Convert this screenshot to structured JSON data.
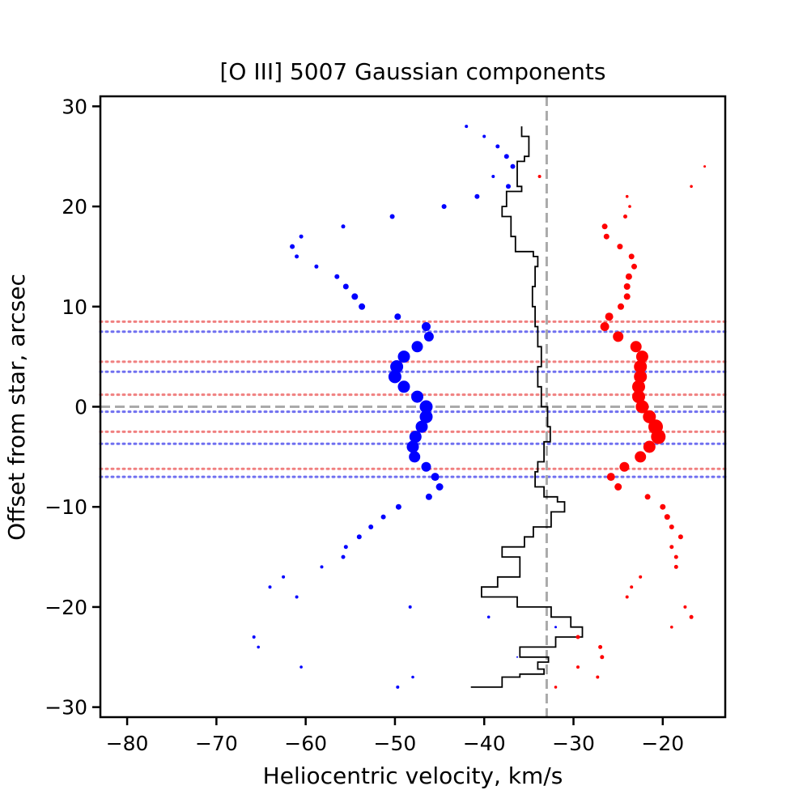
{
  "chart_data": {
    "type": "scatter",
    "title": "[O III] 5007 Gaussian components",
    "xlabel": "Heliocentric velocity, km/s",
    "ylabel": "Offset from star, arcsec",
    "xlim": [
      -83,
      -13
    ],
    "ylim": [
      -31,
      31
    ],
    "xticks": [
      -80,
      -70,
      -60,
      -50,
      -40,
      -30,
      -20
    ],
    "xtick_labels": [
      "−80",
      "−70",
      "−60",
      "−50",
      "−40",
      "−30",
      "−20"
    ],
    "yticks": [
      -30,
      -20,
      -10,
      0,
      10,
      20,
      30
    ],
    "ytick_labels": [
      "−30",
      "−20",
      "−10",
      "0",
      "10",
      "20",
      "30"
    ],
    "reference_lines": {
      "systemic_velocity": -33,
      "star_offset": 0,
      "color": "#aaaaaa"
    },
    "red_horizontal_lines": [
      8.5,
      4.5,
      1.2,
      -2.5,
      -6.2
    ],
    "blue_horizontal_lines": [
      7.5,
      3.5,
      -0.5,
      -3.7,
      -7.0
    ],
    "colors": {
      "blue": "#0000ff",
      "red": "#ff0000",
      "profile": "#000000",
      "red_line": "#f08080",
      "blue_line": "#7070f0"
    },
    "series": [
      {
        "name": "blue components",
        "color": "#0000ff",
        "points": [
          [
            -42,
            28,
            2
          ],
          [
            -40,
            27,
            2
          ],
          [
            -38.5,
            26,
            2.5
          ],
          [
            -37.5,
            25,
            3
          ],
          [
            -36.8,
            24,
            3
          ],
          [
            -39,
            23,
            2
          ],
          [
            -37.3,
            22,
            3
          ],
          [
            -40.8,
            21,
            3
          ],
          [
            -44.5,
            20,
            3
          ],
          [
            -50.3,
            19,
            3
          ],
          [
            -55.8,
            18,
            2.5
          ],
          [
            -60.5,
            17,
            2.5
          ],
          [
            -61.5,
            16,
            3
          ],
          [
            -61,
            15,
            2.5
          ],
          [
            -58.8,
            14,
            2.5
          ],
          [
            -56.5,
            13,
            3
          ],
          [
            -55.5,
            12,
            3.5
          ],
          [
            -54.5,
            11,
            4
          ],
          [
            -53.7,
            10,
            4
          ],
          [
            -49.7,
            9,
            4
          ],
          [
            -46.5,
            8,
            5.5
          ],
          [
            -46.2,
            7,
            6
          ],
          [
            -47.5,
            6,
            7
          ],
          [
            -49,
            5,
            7.5
          ],
          [
            -49.8,
            4,
            8
          ],
          [
            -50,
            3,
            8
          ],
          [
            -49,
            2,
            7.5
          ],
          [
            -47.5,
            1,
            7.5
          ],
          [
            -46.5,
            0,
            8
          ],
          [
            -46.5,
            -1,
            8
          ],
          [
            -47,
            -2,
            7.5
          ],
          [
            -47.7,
            -3,
            7.5
          ],
          [
            -48,
            -4,
            7.5
          ],
          [
            -47.8,
            -5,
            7
          ],
          [
            -46.5,
            -6,
            6
          ],
          [
            -45.5,
            -7,
            5
          ],
          [
            -45,
            -8,
            4.5
          ],
          [
            -46.2,
            -9,
            4
          ],
          [
            -49.6,
            -10,
            3.5
          ],
          [
            -51.3,
            -11,
            3
          ],
          [
            -52.7,
            -12,
            3
          ],
          [
            -54,
            -13,
            3
          ],
          [
            -55.5,
            -14,
            2.5
          ],
          [
            -55.8,
            -15,
            2.5
          ],
          [
            -58.2,
            -16,
            2
          ],
          [
            -62.5,
            -17,
            2
          ],
          [
            -64,
            -18,
            2
          ],
          [
            -61,
            -19,
            2
          ],
          [
            -48.3,
            -20,
            2
          ],
          [
            -39.5,
            -21,
            1.8
          ],
          [
            -32,
            -22,
            1.5
          ],
          [
            -65.8,
            -23,
            2
          ],
          [
            -65.3,
            -24,
            1.8
          ],
          [
            -36.3,
            -25,
            1
          ],
          [
            -60.5,
            -26,
            1.8
          ],
          [
            -48,
            -27,
            1.8
          ],
          [
            -49.7,
            -28,
            2
          ]
        ]
      },
      {
        "name": "red components",
        "color": "#ff0000",
        "points": [
          [
            -15.3,
            24,
            1.5
          ],
          [
            -33.8,
            23,
            2
          ],
          [
            -16.8,
            22,
            1.8
          ],
          [
            -24,
            21,
            1.8
          ],
          [
            -23.7,
            20,
            1.8
          ],
          [
            -24.2,
            19,
            2.5
          ],
          [
            -26.5,
            18,
            3.5
          ],
          [
            -26.3,
            17,
            3.5
          ],
          [
            -24.8,
            16,
            3.5
          ],
          [
            -23.5,
            15,
            3.5
          ],
          [
            -23.2,
            14,
            3.5
          ],
          [
            -23.8,
            13,
            4
          ],
          [
            -24,
            12,
            4
          ],
          [
            -24,
            11,
            4
          ],
          [
            -24.7,
            10,
            4
          ],
          [
            -26,
            9,
            5
          ],
          [
            -26.5,
            8,
            5.5
          ],
          [
            -25,
            7,
            6.5
          ],
          [
            -23,
            6,
            7
          ],
          [
            -22.3,
            5,
            7.5
          ],
          [
            -22.5,
            4,
            8
          ],
          [
            -22.5,
            3,
            8
          ],
          [
            -22.7,
            2,
            8
          ],
          [
            -22.7,
            1,
            8
          ],
          [
            -22.3,
            0,
            8
          ],
          [
            -21.5,
            -1,
            8
          ],
          [
            -20.8,
            -2,
            9
          ],
          [
            -20.5,
            -3,
            9
          ],
          [
            -21.5,
            -4,
            7.5
          ],
          [
            -22.5,
            -5,
            7
          ],
          [
            -24.3,
            -6,
            6
          ],
          [
            -25.8,
            -7,
            5
          ],
          [
            -25,
            -8,
            4.5
          ],
          [
            -21.7,
            -9,
            3.5
          ],
          [
            -20,
            -10,
            3.5
          ],
          [
            -19.5,
            -11,
            3.5
          ],
          [
            -19,
            -12,
            3
          ],
          [
            -18,
            -13,
            3
          ],
          [
            -19,
            -14,
            2.5
          ],
          [
            -18.5,
            -15,
            2.5
          ],
          [
            -18.5,
            -16,
            2.5
          ],
          [
            -22.5,
            -17,
            2
          ],
          [
            -23.5,
            -18,
            2
          ],
          [
            -24,
            -19,
            2
          ],
          [
            -17.5,
            -20,
            2
          ],
          [
            -16.8,
            -21,
            2.5
          ],
          [
            -19,
            -22,
            1.8
          ],
          [
            -29.5,
            -23,
            2.5
          ],
          [
            -27,
            -24,
            2.5
          ],
          [
            -26.8,
            -25,
            2.5
          ],
          [
            -29.5,
            -26,
            2
          ],
          [
            -27.3,
            -27,
            2
          ],
          [
            -32,
            -28,
            1.8
          ]
        ]
      }
    ],
    "profile": [
      [
        -29.2,
        -27
      ],
      [
        -29.2,
        -24
      ],
      [
        -29,
        -23
      ],
      [
        -29,
        -26
      ],
      [
        -29.8,
        -27
      ],
      [
        -29.5,
        -23
      ],
      [
        -30,
        -26
      ],
      [
        -30.5,
        -26
      ],
      [
        -30.5,
        -23
      ],
      [
        -30.5,
        -26
      ],
      [
        -31,
        -26
      ],
      [
        -31.5,
        -23
      ],
      [
        -32,
        -26
      ]
    ]
  }
}
